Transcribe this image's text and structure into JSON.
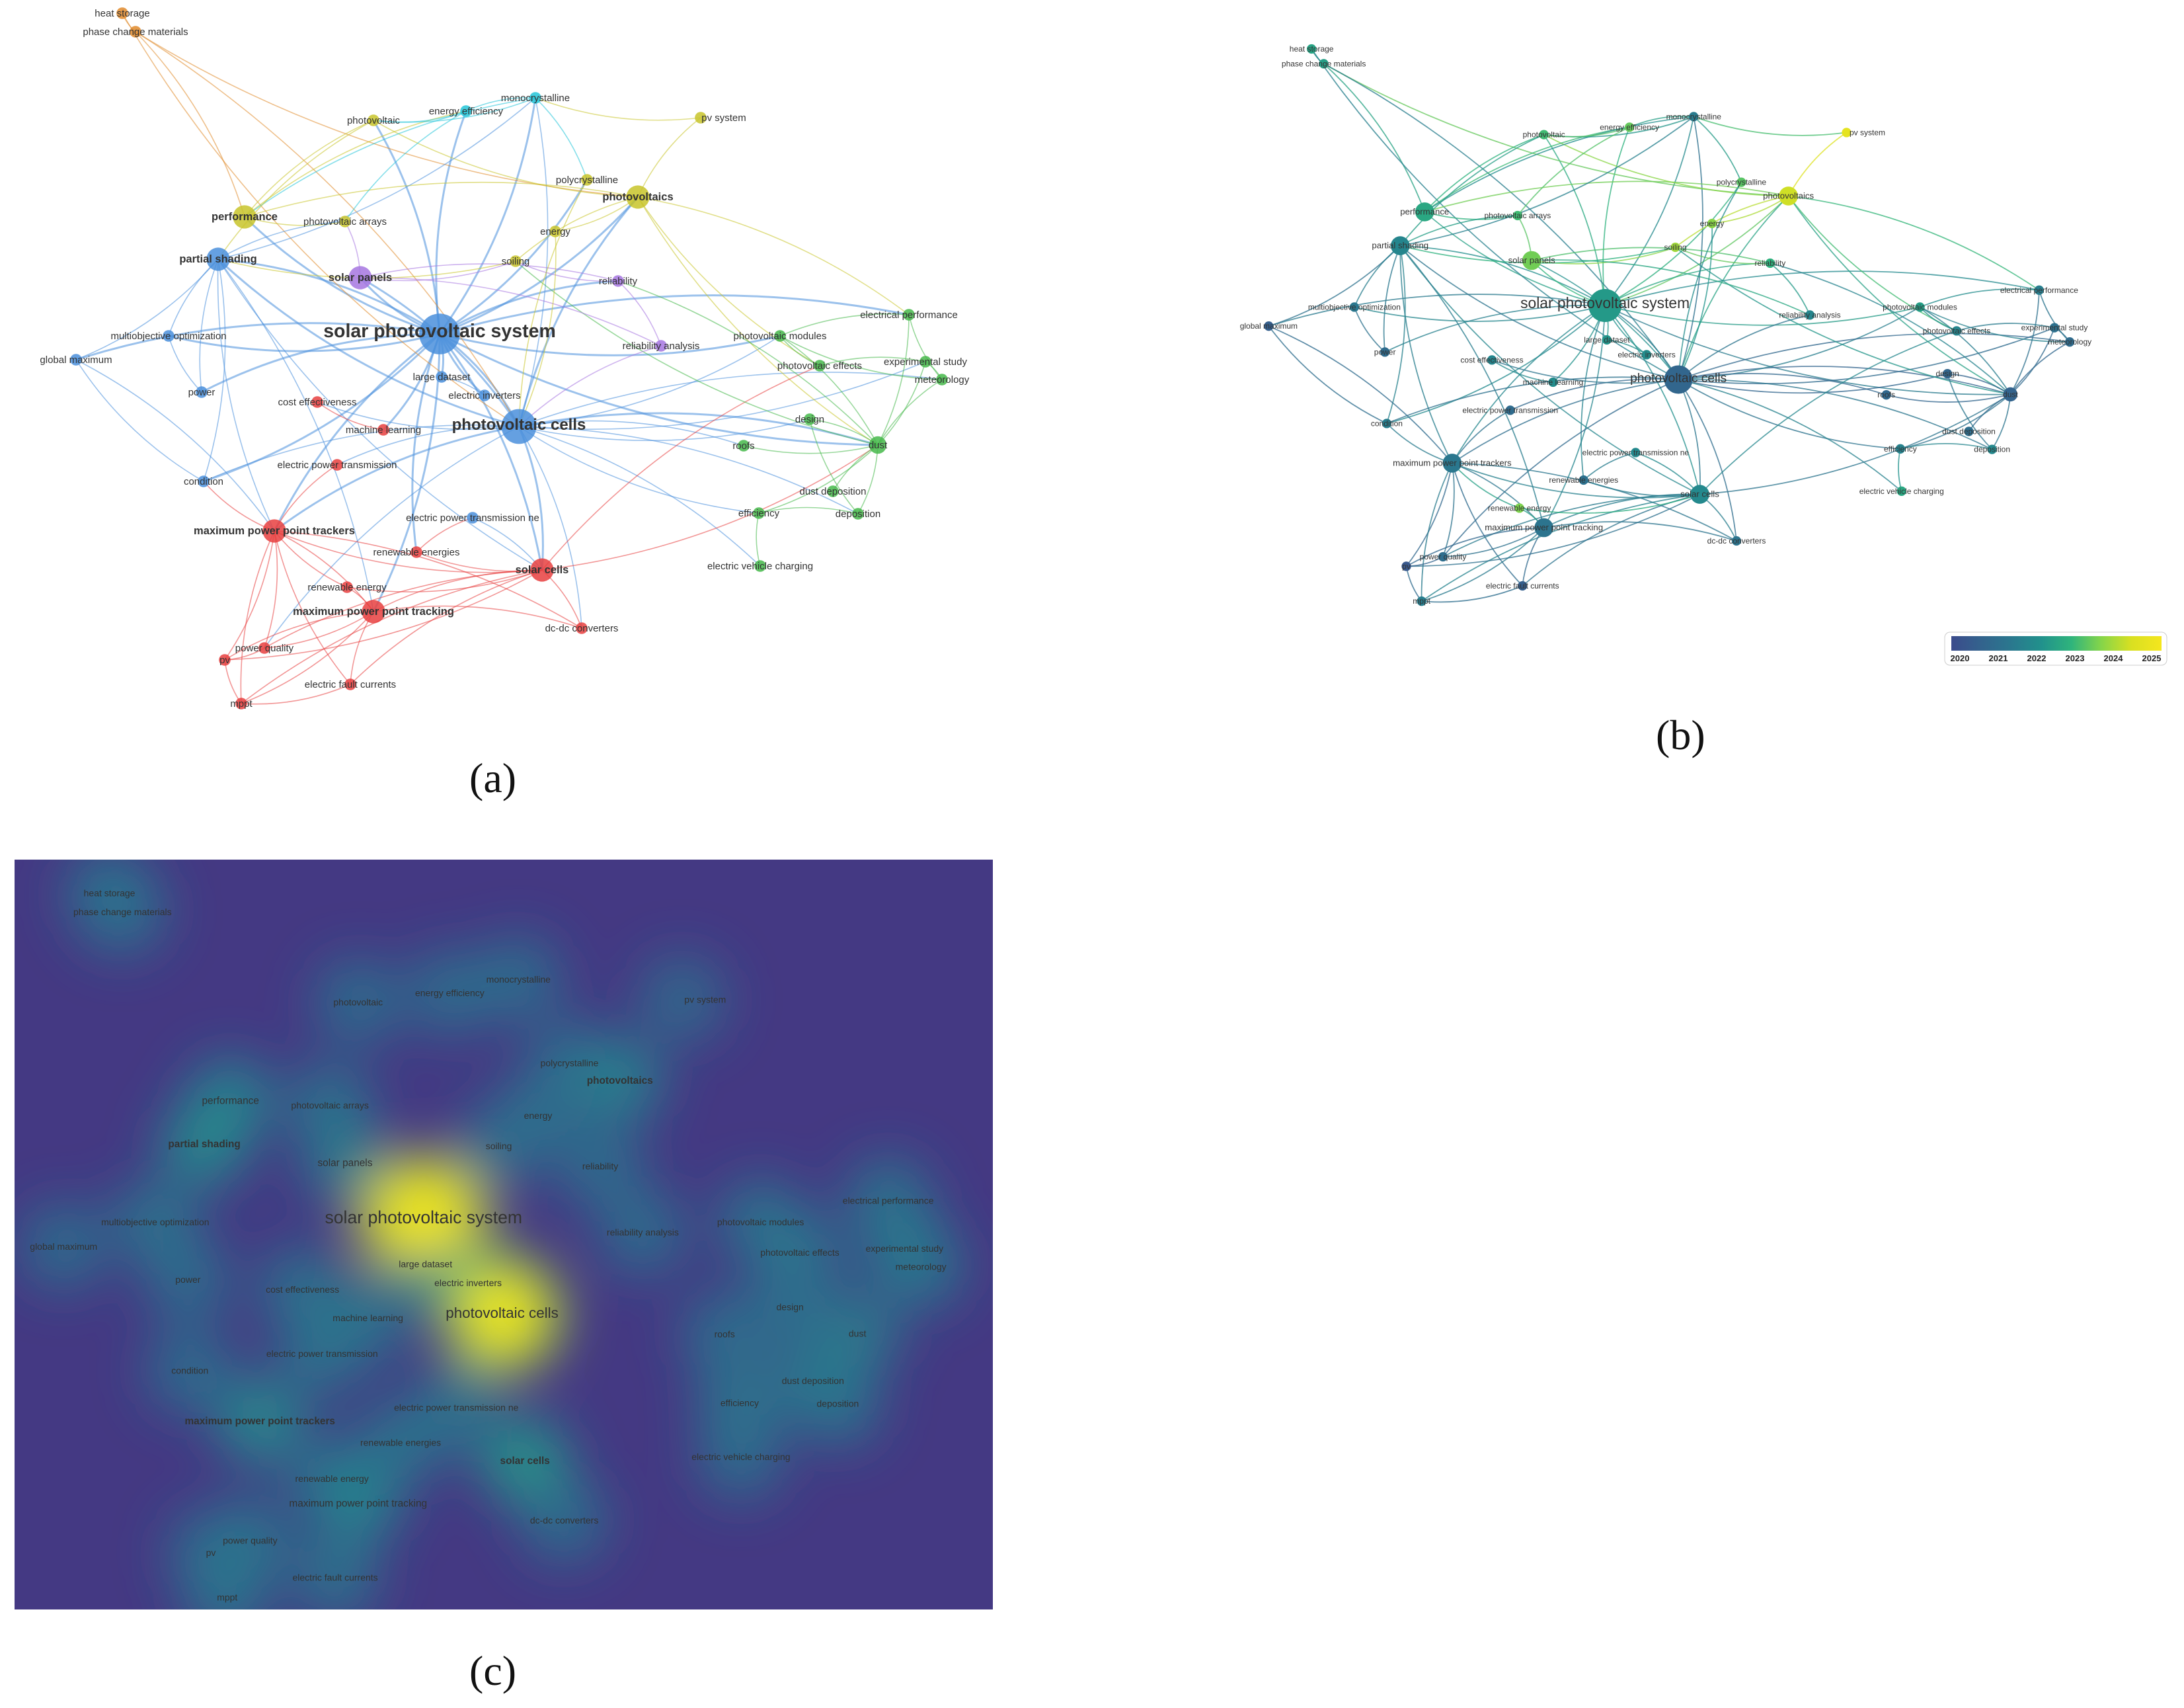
{
  "captions": {
    "a": "(a)",
    "b": "(b)",
    "c": "(c)"
  },
  "legend": {
    "years": [
      "2020",
      "2021",
      "2022",
      "2023",
      "2024",
      "2025"
    ]
  },
  "keywords": [
    {
      "id": "heat-storage",
      "label": "heat storage",
      "cluster": "orange",
      "year": 2022.5,
      "weight": 1,
      "density": 0.35
    },
    {
      "id": "phase-change-materials",
      "label": "phase change materials",
      "cluster": "orange",
      "year": 2022.4,
      "weight": 1,
      "density": 0.3
    },
    {
      "id": "photovoltaic",
      "label": "photovoltaic",
      "cluster": "yellow",
      "year": 2023.0,
      "weight": 1,
      "density": 0.3
    },
    {
      "id": "energy-efficiency",
      "label": "energy efficiency",
      "cluster": "cyan",
      "year": 2023.3,
      "weight": 1,
      "density": 0.3
    },
    {
      "id": "monocrystalline",
      "label": "monocrystalline",
      "cluster": "cyan",
      "year": 2021.5,
      "weight": 1,
      "density": 0.3
    },
    {
      "id": "pv-system",
      "label": "pv system",
      "cluster": "yellow",
      "year": 2024.6,
      "weight": 1,
      "density": 0.25
    },
    {
      "id": "polycrystalline",
      "label": "polycrystalline",
      "cluster": "yellow",
      "year": 2023.2,
      "weight": 1,
      "density": 0.3
    },
    {
      "id": "photovoltaics",
      "label": "photovoltaics",
      "cluster": "yellow",
      "year": 2024.2,
      "weight": 3,
      "density": 0.45
    },
    {
      "id": "performance",
      "label": "performance",
      "cluster": "yellow",
      "year": 2022.6,
      "weight": 3,
      "density": 0.45
    },
    {
      "id": "photovoltaic-arrays",
      "label": "photovoltaic arrays",
      "cluster": "yellow",
      "year": 2023.0,
      "weight": 1,
      "density": 0.35
    },
    {
      "id": "energy",
      "label": "energy",
      "cluster": "yellow",
      "year": 2023.6,
      "weight": 1,
      "density": 0.3
    },
    {
      "id": "partial-shading",
      "label": "partial shading",
      "cluster": "blue",
      "year": 2021.8,
      "weight": 3,
      "density": 0.5
    },
    {
      "id": "solar-panels",
      "label": "solar panels",
      "cluster": "purple",
      "year": 2023.4,
      "weight": 3,
      "density": 0.4
    },
    {
      "id": "soiling",
      "label": "soiling",
      "cluster": "yellow",
      "year": 2023.8,
      "weight": 1,
      "density": 0.3
    },
    {
      "id": "reliability",
      "label": "reliability",
      "cluster": "purple",
      "year": 2022.8,
      "weight": 1,
      "density": 0.3
    },
    {
      "id": "solar-photovoltaic-system",
      "label": "solar photovoltaic system",
      "cluster": "blue",
      "year": 2022.3,
      "weight": 6,
      "density": 1.0
    },
    {
      "id": "multiobjective-optimization",
      "label": "multiobjective optimization",
      "cluster": "blue",
      "year": 2021.4,
      "weight": 1,
      "density": 0.35
    },
    {
      "id": "global-maximum",
      "label": "global maximum",
      "cluster": "blue",
      "year": 2020.6,
      "weight": 1,
      "density": 0.3
    },
    {
      "id": "reliability-analysis",
      "label": "reliability analysis",
      "cluster": "purple",
      "year": 2021.8,
      "weight": 1,
      "density": 0.3
    },
    {
      "id": "photovoltaic-modules",
      "label": "photovoltaic modules",
      "cluster": "green",
      "year": 2022.4,
      "weight": 1,
      "density": 0.35
    },
    {
      "id": "electrical-performance",
      "label": "electrical performance",
      "cluster": "green",
      "year": 2021.6,
      "weight": 1,
      "density": 0.35
    },
    {
      "id": "photovoltaic-effects",
      "label": "photovoltaic effects",
      "cluster": "green",
      "year": 2021.8,
      "weight": 1,
      "density": 0.35
    },
    {
      "id": "experimental-study",
      "label": "experimental study",
      "cluster": "green",
      "year": 2021.2,
      "weight": 1,
      "density": 0.35
    },
    {
      "id": "meteorology",
      "label": "meteorology",
      "cluster": "green",
      "year": 2021.0,
      "weight": 1,
      "density": 0.35
    },
    {
      "id": "large-dataset",
      "label": "large dataset",
      "cluster": "blue",
      "year": 2022.2,
      "weight": 1,
      "density": 0.4
    },
    {
      "id": "electric-inverters",
      "label": "electric inverters",
      "cluster": "blue",
      "year": 2022.0,
      "weight": 1,
      "density": 0.4
    },
    {
      "id": "power",
      "label": "power",
      "cluster": "blue",
      "year": 2021.0,
      "weight": 1,
      "density": 0.3
    },
    {
      "id": "cost-effectiveness",
      "label": "cost effectiveness",
      "cluster": "red",
      "year": 2021.8,
      "weight": 1,
      "density": 0.35
    },
    {
      "id": "photovoltaic-cells",
      "label": "photovoltaic cells",
      "cluster": "blue",
      "year": 2020.8,
      "weight": 5,
      "density": 0.9
    },
    {
      "id": "machine-learning",
      "label": "machine learning",
      "cluster": "red",
      "year": 2022.0,
      "weight": 1,
      "density": 0.35
    },
    {
      "id": "design",
      "label": "design",
      "cluster": "green",
      "year": 2020.8,
      "weight": 1,
      "density": 0.3
    },
    {
      "id": "roofs",
      "label": "roofs",
      "cluster": "green",
      "year": 2020.9,
      "weight": 1,
      "density": 0.3
    },
    {
      "id": "dust",
      "label": "dust",
      "cluster": "green",
      "year": 2020.7,
      "weight": 2,
      "density": 0.4
    },
    {
      "id": "electric-power-transmission",
      "label": "electric power transmission",
      "cluster": "red",
      "year": 2021.0,
      "weight": 1,
      "density": 0.35
    },
    {
      "id": "condition",
      "label": "condition",
      "cluster": "blue",
      "year": 2021.6,
      "weight": 1,
      "density": 0.3
    },
    {
      "id": "dust-deposition",
      "label": "dust deposition",
      "cluster": "green",
      "year": 2021.1,
      "weight": 1,
      "density": 0.35
    },
    {
      "id": "maximum-power-point-trackers",
      "label": "maximum power point trackers",
      "cluster": "red",
      "year": 2021.4,
      "weight": 3,
      "density": 0.5
    },
    {
      "id": "electric-power-transmission-ne",
      "label": "electric power transmission ne",
      "cluster": "blue",
      "year": 2021.9,
      "weight": 1,
      "density": 0.35
    },
    {
      "id": "efficiency",
      "label": "efficiency",
      "cluster": "green",
      "year": 2021.7,
      "weight": 1,
      "density": 0.35
    },
    {
      "id": "deposition",
      "label": "deposition",
      "cluster": "green",
      "year": 2021.9,
      "weight": 1,
      "density": 0.35
    },
    {
      "id": "renewable-energies",
      "label": "renewable energies",
      "cluster": "red",
      "year": 2021.2,
      "weight": 1,
      "density": 0.35
    },
    {
      "id": "solar-cells",
      "label": "solar cells",
      "cluster": "red",
      "year": 2021.9,
      "weight": 3,
      "density": 0.55
    },
    {
      "id": "electric-vehicle-charging",
      "label": "electric vehicle charging",
      "cluster": "green",
      "year": 2022.6,
      "weight": 1,
      "density": 0.3
    },
    {
      "id": "renewable-energy",
      "label": "renewable energy",
      "cluster": "red",
      "year": 2023.5,
      "weight": 1,
      "density": 0.35
    },
    {
      "id": "maximum-power-point-tracking",
      "label": "maximum power point tracking",
      "cluster": "red",
      "year": 2021.3,
      "weight": 3,
      "density": 0.45
    },
    {
      "id": "dc-dc-converters",
      "label": "dc-dc converters",
      "cluster": "red",
      "year": 2021.3,
      "weight": 1,
      "density": 0.3
    },
    {
      "id": "power-quality",
      "label": "power quality",
      "cluster": "red",
      "year": 2021.1,
      "weight": 1,
      "density": 0.35
    },
    {
      "id": "pv",
      "label": "pv",
      "cluster": "red",
      "year": 2020.4,
      "weight": 1,
      "density": 0.3
    },
    {
      "id": "electric-fault-currents",
      "label": "electric fault currents",
      "cluster": "red",
      "year": 2020.6,
      "weight": 1,
      "density": 0.35
    },
    {
      "id": "mppt",
      "label": "mppt",
      "cluster": "red",
      "year": 2021.6,
      "weight": 1,
      "density": 0.35
    }
  ],
  "cluster_colors": {
    "red": "#e8403f",
    "green": "#45b84a",
    "blue": "#4a8fdc",
    "yellow": "#c8c42a",
    "purple": "#a675e0",
    "cyan": "#24c5d8",
    "orange": "#e08a2a"
  }
}
